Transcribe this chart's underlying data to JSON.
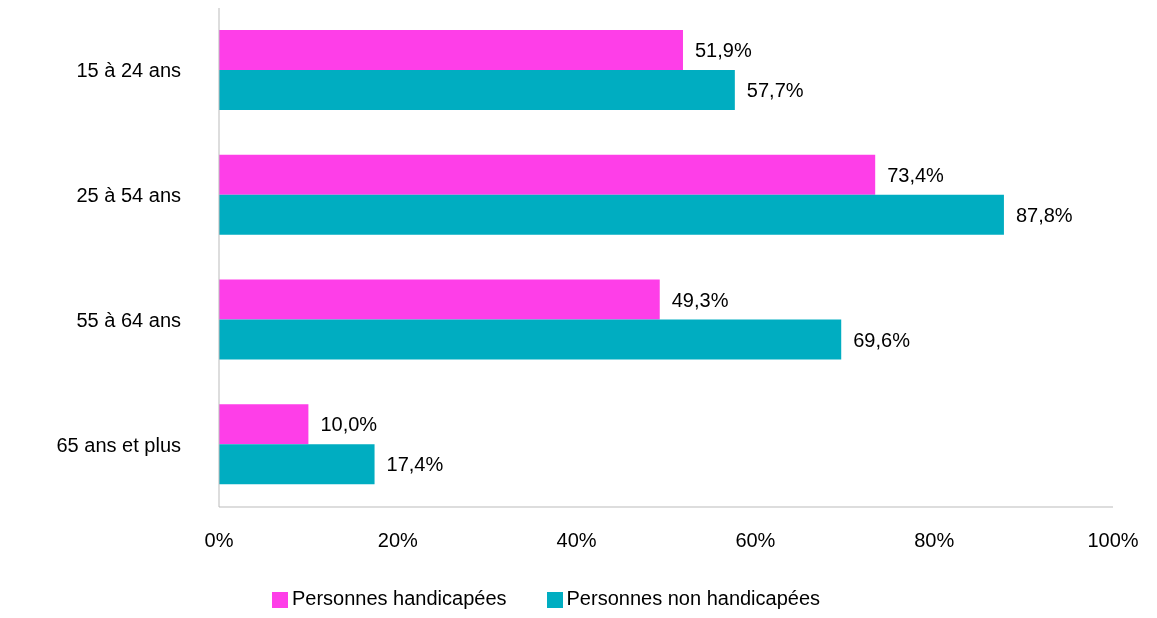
{
  "chart_data": {
    "type": "bar",
    "orientation": "horizontal",
    "categories": [
      "15 à 24 ans",
      "25 à 54 ans",
      "55 à 64 ans",
      "65 ans et plus"
    ],
    "series": [
      {
        "name": "Personnes handicapées",
        "color": "#fe3ee8",
        "values": [
          51.9,
          73.4,
          49.3,
          10.0
        ],
        "value_labels": [
          "51,9%",
          "73,4%",
          "49,3%",
          "10,0%"
        ]
      },
      {
        "name": "Personnes non handicapées",
        "color": "#00adc1",
        "values": [
          57.7,
          87.8,
          69.6,
          17.4
        ],
        "value_labels": [
          "57,7%",
          "87,8%",
          "69,6%",
          "17,4%"
        ]
      }
    ],
    "xlim": [
      0,
      100
    ],
    "xticks": [
      {
        "value": 0,
        "label": "0%"
      },
      {
        "value": 20,
        "label": "20%"
      },
      {
        "value": 40,
        "label": "40%"
      },
      {
        "value": 60,
        "label": "60%"
      },
      {
        "value": 80,
        "label": "80%"
      },
      {
        "value": 100,
        "label": "100%"
      }
    ],
    "grid": false,
    "legend": "bottom"
  }
}
